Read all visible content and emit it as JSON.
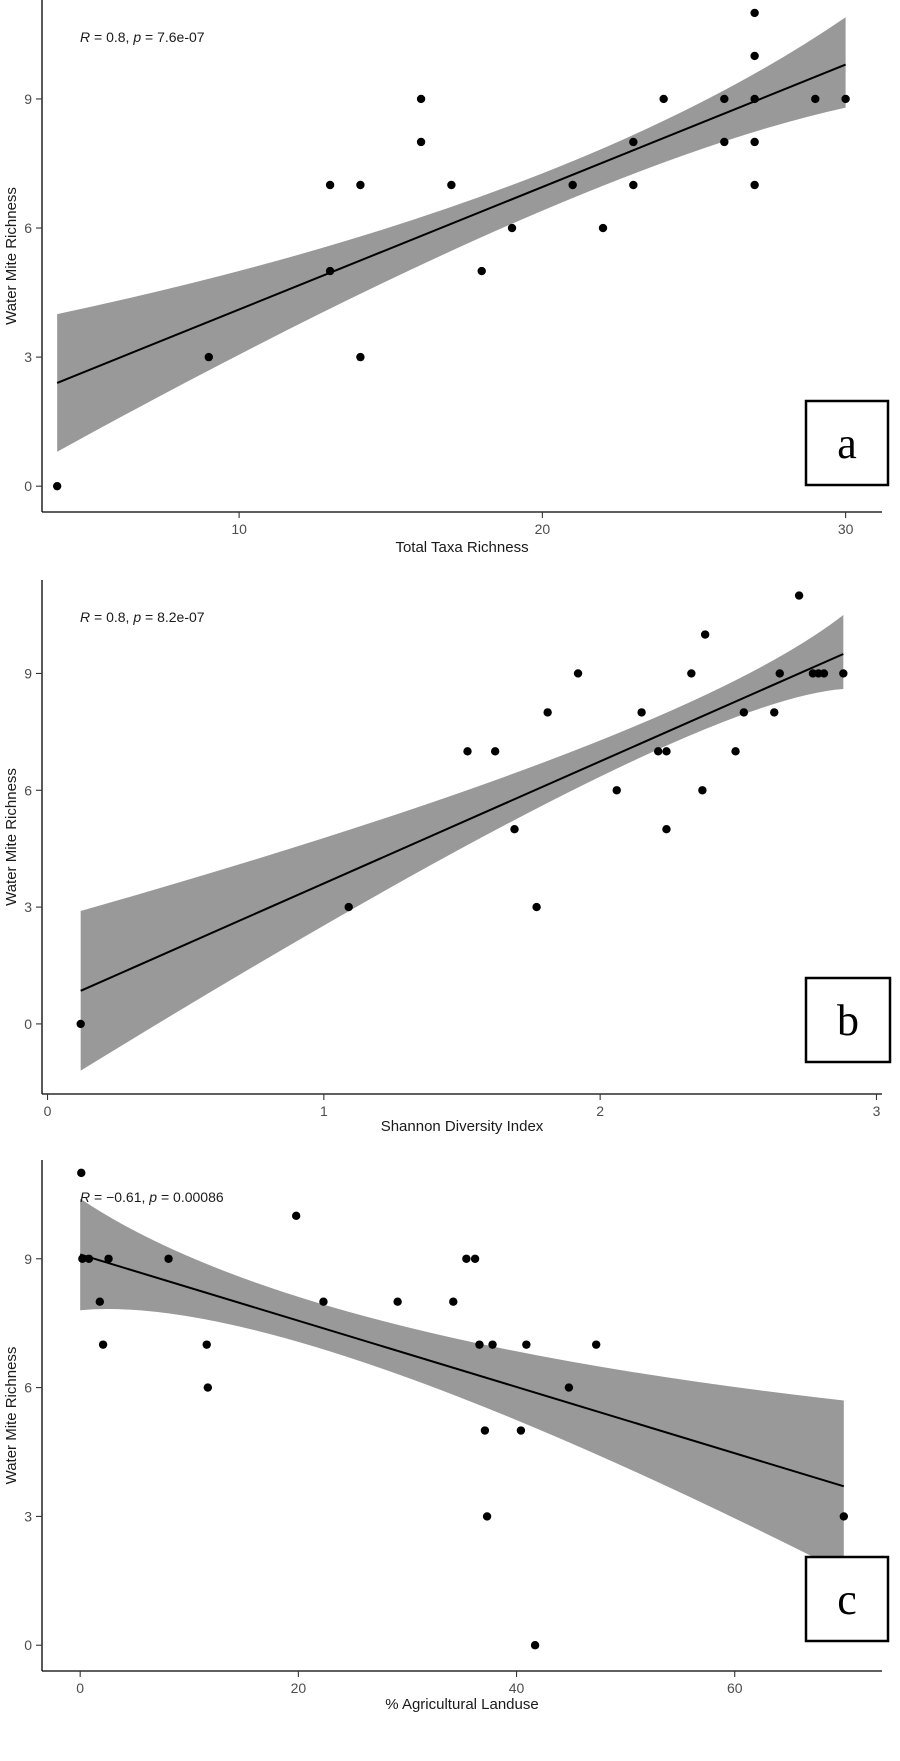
{
  "chart_data": [
    {
      "type": "scatter",
      "panel_label": "a",
      "stat": {
        "r_symbol": "R",
        "r_value": "0.8",
        "p_symbol": "p",
        "p_value": "7.6e-07"
      },
      "xlabel": "Total Taxa Richness",
      "ylabel": "Water Mite Richness",
      "xlim": [
        3.5,
        31.2
      ],
      "ylim": [
        -0.6,
        11.3
      ],
      "xticks": [
        10,
        20,
        30
      ],
      "yticks": [
        0,
        3,
        6,
        9
      ],
      "fit": {
        "x0": 4,
        "y0": 2.4,
        "x1": 30,
        "y1": 9.8
      },
      "ci_band": {
        "x0": 4,
        "lower0": 0.8,
        "upper0": 4.0,
        "xm": 19,
        "lowerm": 6.1,
        "upperm": 7.0,
        "x1": 30,
        "lower1": 8.8,
        "upper1": 10.9
      },
      "points": [
        [
          4,
          0
        ],
        [
          9,
          3
        ],
        [
          13,
          5
        ],
        [
          13,
          7
        ],
        [
          14,
          3
        ],
        [
          14,
          7
        ],
        [
          16,
          8
        ],
        [
          16,
          9
        ],
        [
          17,
          7
        ],
        [
          18,
          5
        ],
        [
          19,
          6
        ],
        [
          21,
          7
        ],
        [
          22,
          6
        ],
        [
          23,
          7
        ],
        [
          23,
          8
        ],
        [
          24,
          9
        ],
        [
          26,
          8
        ],
        [
          26,
          9
        ],
        [
          27,
          7
        ],
        [
          27,
          8
        ],
        [
          27,
          9
        ],
        [
          27,
          10
        ],
        [
          27,
          11
        ],
        [
          29,
          9
        ],
        [
          30,
          9
        ]
      ]
    },
    {
      "type": "scatter",
      "panel_label": "b",
      "stat": {
        "r_symbol": "R",
        "r_value": "0.8",
        "p_symbol": "p",
        "p_value": "8.2e-07"
      },
      "xlabel": "Shannon Diversity Index",
      "ylabel": "Water Mite Richness",
      "xlim": [
        -0.02,
        3.02
      ],
      "ylim": [
        -1.8,
        11.4
      ],
      "xticks": [
        0,
        1,
        2,
        3
      ],
      "yticks": [
        0,
        3,
        6,
        9
      ],
      "fit": {
        "x0": 0.12,
        "y0": 0.85,
        "x1": 2.88,
        "y1": 9.5
      },
      "ci_band": {
        "x0": 0.12,
        "lower0": -1.2,
        "upper0": 2.9,
        "xm": 1.9,
        "lowerm": 6.0,
        "upperm": 7.0,
        "x1": 2.88,
        "lower1": 8.6,
        "upper1": 10.5
      },
      "points": [
        [
          0.12,
          0
        ],
        [
          1.09,
          3
        ],
        [
          1.52,
          7
        ],
        [
          1.62,
          7
        ],
        [
          1.69,
          5
        ],
        [
          1.77,
          3
        ],
        [
          1.81,
          8
        ],
        [
          1.92,
          9
        ],
        [
          2.06,
          6
        ],
        [
          2.15,
          8
        ],
        [
          2.21,
          7
        ],
        [
          2.24,
          7
        ],
        [
          2.24,
          5
        ],
        [
          2.33,
          9
        ],
        [
          2.37,
          6
        ],
        [
          2.38,
          10
        ],
        [
          2.49,
          7
        ],
        [
          2.52,
          8
        ],
        [
          2.63,
          8
        ],
        [
          2.65,
          9
        ],
        [
          2.72,
          11
        ],
        [
          2.77,
          9
        ],
        [
          2.79,
          9
        ],
        [
          2.81,
          9
        ],
        [
          2.88,
          9
        ]
      ]
    },
    {
      "type": "scatter",
      "panel_label": "c",
      "stat": {
        "r_symbol": "R",
        "r_value": "−0.61",
        "p_symbol": "p",
        "p_value": "0.00086"
      },
      "xlabel": "% Agricultural Landuse",
      "ylabel": "Water Mite Richness",
      "xlim": [
        -3.5,
        73.5
      ],
      "ylim": [
        -0.6,
        11.3
      ],
      "xticks": [
        0,
        20,
        40,
        60
      ],
      "yticks": [
        0,
        3,
        6,
        9
      ],
      "fit": {
        "x0": 0,
        "y0": 9.1,
        "x1": 70,
        "y1": 3.7
      },
      "ci_band": {
        "x0": 0,
        "lower0": 7.8,
        "upper0": 10.4,
        "xm": 27,
        "lowerm": 6.5,
        "upperm": 7.6,
        "x1": 70,
        "lower1": 1.7,
        "upper1": 5.7
      },
      "points": [
        [
          0.1,
          11
        ],
        [
          0.2,
          9
        ],
        [
          0.8,
          9
        ],
        [
          1.8,
          8
        ],
        [
          2.1,
          7
        ],
        [
          2.6,
          9
        ],
        [
          8.1,
          9
        ],
        [
          11.6,
          7
        ],
        [
          11.7,
          6
        ],
        [
          19.8,
          10
        ],
        [
          22.3,
          8
        ],
        [
          29.1,
          8
        ],
        [
          34.2,
          8
        ],
        [
          35.4,
          9
        ],
        [
          36.2,
          9
        ],
        [
          36.6,
          7
        ],
        [
          37.1,
          5
        ],
        [
          37.3,
          3
        ],
        [
          37.8,
          7
        ],
        [
          40.4,
          5
        ],
        [
          40.9,
          7
        ],
        [
          41.7,
          0
        ],
        [
          44.8,
          6
        ],
        [
          47.3,
          7
        ],
        [
          70,
          3
        ]
      ]
    }
  ]
}
